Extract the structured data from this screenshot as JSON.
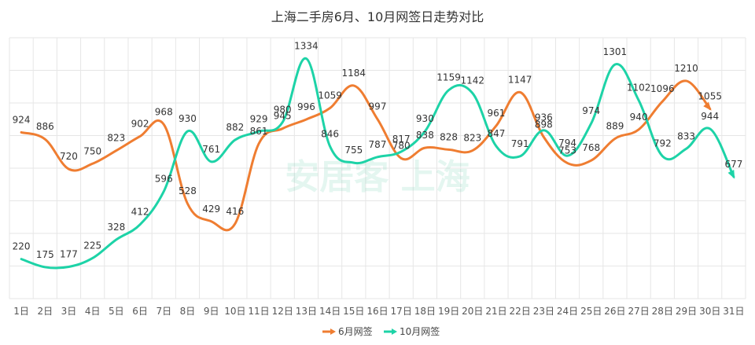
{
  "chart_data": {
    "type": "line",
    "title": "上海二手房6月、10月网签日走势对比",
    "categories": [
      "1日",
      "2日",
      "3日",
      "4日",
      "5日",
      "6日",
      "7日",
      "8日",
      "9日",
      "10日",
      "11日",
      "12日",
      "13日",
      "14日",
      "15日",
      "16日",
      "17日",
      "18日",
      "19日",
      "20日",
      "21日",
      "22日",
      "23日",
      "24日",
      "25日",
      "26日",
      "27日",
      "28日",
      "29日",
      "30日",
      "31日"
    ],
    "series": [
      {
        "name": "6月网签",
        "color": "#ef7d31",
        "values": [
          924,
          886,
          720,
          750,
          823,
          902,
          968,
          528,
          429,
          416,
          861,
          945,
          996,
          1059,
          1184,
          997,
          780,
          838,
          828,
          823,
          961,
          1147,
          898,
          753,
          768,
          889,
          940,
          1096,
          1210,
          1055,
          null
        ]
      },
      {
        "name": "10月网签",
        "color": "#1dd3a7",
        "values": [
          220,
          175,
          177,
          225,
          328,
          412,
          596,
          930,
          761,
          882,
          929,
          980,
          1334,
          846,
          755,
          787,
          817,
          930,
          1159,
          1142,
          847,
          791,
          936,
          794,
          974,
          1301,
          1102,
          792,
          833,
          944,
          677
        ]
      }
    ],
    "ylim": [
      0,
      1450
    ],
    "grid": true,
    "legend": "bottom-center",
    "watermark": "安居客 上海"
  }
}
